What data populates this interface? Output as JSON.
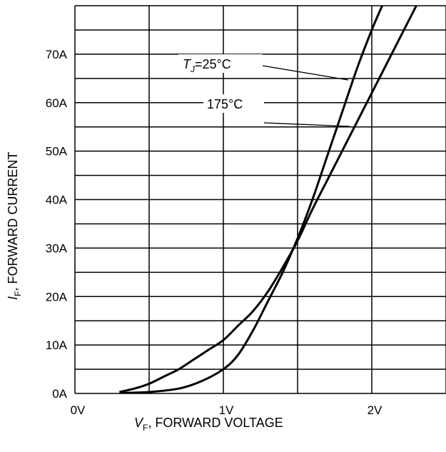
{
  "chart_data": {
    "type": "line",
    "x_unit": "V",
    "y_unit": "A",
    "xlim": [
      0,
      2.5
    ],
    "ylim": [
      0,
      80
    ],
    "y_gridline_step": 5,
    "grid": true,
    "x_ticks": [
      {
        "value": 0,
        "label": "0V"
      },
      {
        "value": 1,
        "label": "1V"
      },
      {
        "value": 2,
        "label": "2V"
      }
    ],
    "y_ticks": [
      {
        "value": 0,
        "label": "0A"
      },
      {
        "value": 10,
        "label": "10A"
      },
      {
        "value": 20,
        "label": "20A"
      },
      {
        "value": 30,
        "label": "30A"
      },
      {
        "value": 40,
        "label": "40A"
      },
      {
        "value": 50,
        "label": "50A"
      },
      {
        "value": 60,
        "label": "60A"
      },
      {
        "value": 70,
        "label": "70A"
      }
    ],
    "xlabel": {
      "symbol": "V",
      "subscript": "F",
      "text": ", FORWARD VOLTAGE"
    },
    "ylabel": {
      "symbol": "I",
      "subscript": "F",
      "text": ", FORWARD CURRENT"
    },
    "series": [
      {
        "name": "TJ=25°C",
        "points": [
          [
            0.3,
            0.1
          ],
          [
            0.5,
            0.3
          ],
          [
            0.7,
            1.0
          ],
          [
            0.85,
            2.5
          ],
          [
            1.0,
            5.0
          ],
          [
            1.1,
            8.0
          ],
          [
            1.2,
            13.0
          ],
          [
            1.3,
            19.0
          ],
          [
            1.4,
            25.0
          ],
          [
            1.5,
            32.0
          ],
          [
            1.6,
            40.0
          ],
          [
            1.7,
            49.0
          ],
          [
            1.8,
            58.0
          ],
          [
            1.9,
            67.0
          ],
          [
            2.0,
            75.0
          ],
          [
            2.07,
            80.0
          ]
        ]
      },
      {
        "name": "175°C",
        "points": [
          [
            0.3,
            0.3
          ],
          [
            0.4,
            1.0
          ],
          [
            0.5,
            2.0
          ],
          [
            0.6,
            3.5
          ],
          [
            0.7,
            5.0
          ],
          [
            0.8,
            7.0
          ],
          [
            0.9,
            9.0
          ],
          [
            1.0,
            11.0
          ],
          [
            1.1,
            14.0
          ],
          [
            1.2,
            17.0
          ],
          [
            1.3,
            21.0
          ],
          [
            1.4,
            26.0
          ],
          [
            1.5,
            31.5
          ],
          [
            1.6,
            38.0
          ],
          [
            1.7,
            44.0
          ],
          [
            1.8,
            50.0
          ],
          [
            1.9,
            56.0
          ],
          [
            2.0,
            62.0
          ],
          [
            2.1,
            68.0
          ],
          [
            2.2,
            74.0
          ],
          [
            2.3,
            80.0
          ]
        ]
      }
    ],
    "annotations": [
      {
        "symbol": "T",
        "subscript": "J",
        "text": "=25°C"
      },
      {
        "text": "175°C"
      }
    ]
  }
}
